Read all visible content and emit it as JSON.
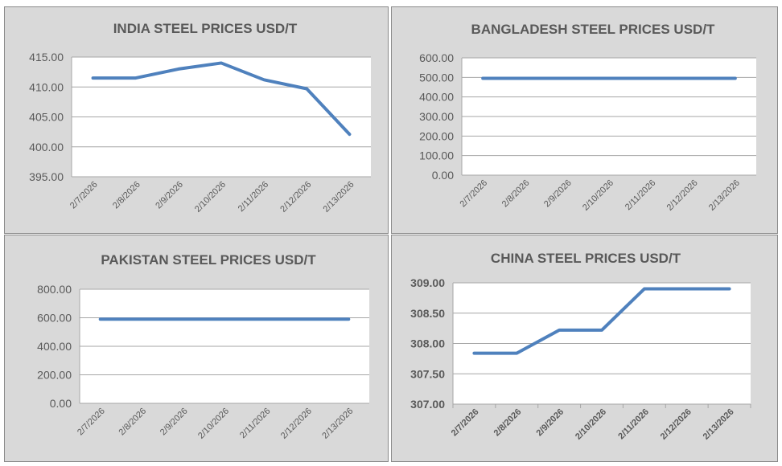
{
  "chart_data": [
    {
      "type": "line",
      "title": "INDIA STEEL PRICES USD/T",
      "categories": [
        "2/7/2026",
        "2/8/2026",
        "2/9/2026",
        "2/10/2026",
        "2/11/2026",
        "2/12/2026",
        "2/13/2026"
      ],
      "series": [
        {
          "name": "India",
          "values": [
            411.5,
            411.5,
            413.0,
            414.0,
            411.2,
            409.7,
            402.1
          ]
        }
      ],
      "ylim": [
        395,
        415
      ],
      "yticks": [
        395,
        400,
        405,
        410,
        415
      ],
      "ytick_labels": [
        "395.00",
        "400.00",
        "405.00",
        "410.00",
        "415.00"
      ],
      "xlabel": "",
      "ylabel": "",
      "grid": true,
      "color": "#4f81bd"
    },
    {
      "type": "line",
      "title": "BANGLADESH STEEL PRICES USD/T",
      "categories": [
        "2/7/2026",
        "2/8/2026",
        "2/9/2026",
        "2/10/2026",
        "2/11/2026",
        "2/12/2026",
        "2/13/2026"
      ],
      "series": [
        {
          "name": "Bangladesh",
          "values": [
            495,
            495,
            495,
            495,
            495,
            495,
            495
          ]
        }
      ],
      "ylim": [
        0,
        600
      ],
      "yticks": [
        0,
        100,
        200,
        300,
        400,
        500,
        600
      ],
      "ytick_labels": [
        "0.00",
        "100.00",
        "200.00",
        "300.00",
        "400.00",
        "500.00",
        "600.00"
      ],
      "xlabel": "",
      "ylabel": "",
      "grid": true,
      "color": "#4f81bd"
    },
    {
      "type": "line",
      "title": "PAKISTAN STEEL PRICES USD/T",
      "categories": [
        "2/7/2026",
        "2/8/2026",
        "2/9/2026",
        "2/10/2026",
        "2/11/2026",
        "2/12/2026",
        "2/13/2026"
      ],
      "series": [
        {
          "name": "Pakistan",
          "values": [
            590,
            590,
            590,
            590,
            590,
            590,
            590
          ]
        }
      ],
      "ylim": [
        0,
        800
      ],
      "yticks": [
        0,
        200,
        400,
        600,
        800
      ],
      "ytick_labels": [
        "0.00",
        "200.00",
        "400.00",
        "600.00",
        "800.00"
      ],
      "xlabel": "",
      "ylabel": "",
      "grid": true,
      "color": "#4f81bd"
    },
    {
      "type": "line",
      "title": "CHINA STEEL PRICES USD/T",
      "categories": [
        "2/7/2026",
        "2/8/2026",
        "2/9/2026",
        "2/10/2026",
        "2/11/2026",
        "2/12/2026",
        "2/13/2026"
      ],
      "series": [
        {
          "name": "China",
          "values": [
            307.84,
            307.84,
            308.22,
            308.22,
            308.9,
            308.9,
            308.9
          ]
        }
      ],
      "ylim": [
        307,
        309
      ],
      "yticks": [
        307,
        307.5,
        308,
        308.5,
        309
      ],
      "ytick_labels": [
        "307.00",
        "307.50",
        "308.00",
        "308.50",
        "309.00"
      ],
      "xlabel": "",
      "ylabel": "",
      "grid": true,
      "color": "#4f81bd"
    }
  ]
}
